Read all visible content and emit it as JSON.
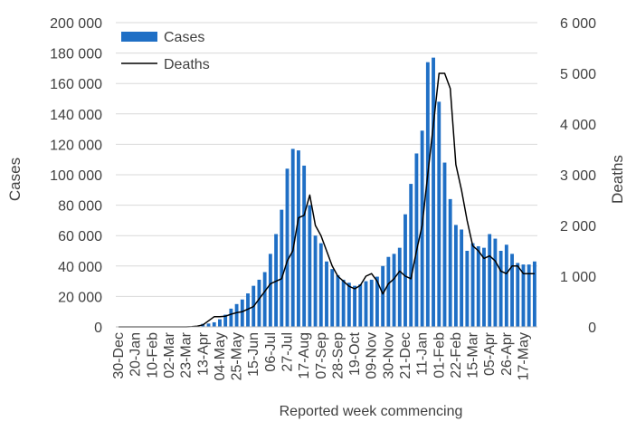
{
  "chart_data": {
    "type": "bar",
    "title": "",
    "xlabel": "Reported week commencing",
    "ylabel": "Cases",
    "y2label": "Deaths",
    "ylim": [
      0,
      200000
    ],
    "y2lim": [
      0,
      6000
    ],
    "yticks": [
      "0",
      "20 000",
      "40 000",
      "60 000",
      "80 000",
      "100 000",
      "120 000",
      "140 000",
      "160 000",
      "180 000",
      "200 000"
    ],
    "y2ticks": [
      "0",
      "1 000",
      "2 000",
      "3 000",
      "4 000",
      "5 000",
      "6 000"
    ],
    "xtick_labels": [
      "30-Dec",
      "20-Jan",
      "10-Feb",
      "02-Mar",
      "23-Mar",
      "13-Apr",
      "04-May",
      "25-May",
      "15-Jun",
      "06-Jul",
      "27-Jul",
      "17-Aug",
      "07-Sep",
      "28-Sep",
      "19-Oct",
      "09-Nov",
      "30-Nov",
      "21-Dec",
      "11-Jan",
      "01-Feb",
      "22-Feb",
      "15-Mar",
      "05-Apr",
      "26-Apr",
      "17-May"
    ],
    "legend_position": "top-left",
    "bar_color": "#1f6fc5",
    "line_color": "#000000",
    "series": [
      {
        "name": "Cases",
        "kind": "bar",
        "axis": "left",
        "values": [
          0,
          0,
          0,
          0,
          0,
          0,
          0,
          0,
          0,
          0,
          0,
          0,
          100,
          200,
          500,
          2000,
          2200,
          3000,
          5000,
          8000,
          12000,
          15000,
          18000,
          22000,
          27000,
          31000,
          36000,
          48000,
          61000,
          77000,
          104000,
          117000,
          116000,
          106000,
          80000,
          60000,
          55000,
          43000,
          38000,
          34000,
          31000,
          29000,
          27000,
          28000,
          30000,
          31000,
          33000,
          40000,
          46000,
          48000,
          52000,
          74000,
          94000,
          114000,
          129000,
          174000,
          177000,
          148000,
          108000,
          84000,
          67000,
          64000,
          50000,
          55000,
          53000,
          52000,
          61000,
          58000,
          50000,
          54000,
          48000,
          42000,
          41000,
          41000,
          43000
        ]
      },
      {
        "name": "Deaths",
        "kind": "line",
        "axis": "right",
        "values": [
          0,
          0,
          0,
          0,
          0,
          0,
          0,
          0,
          0,
          0,
          0,
          0,
          0,
          5,
          15,
          40,
          120,
          200,
          200,
          210,
          250,
          280,
          300,
          350,
          400,
          550,
          700,
          850,
          900,
          950,
          1300,
          1500,
          2150,
          2200,
          2600,
          2000,
          1800,
          1500,
          1200,
          1000,
          900,
          800,
          750,
          820,
          1000,
          1050,
          900,
          650,
          850,
          950,
          1100,
          1000,
          950,
          1500,
          2000,
          3000,
          4000,
          5000,
          5000,
          4700,
          3200,
          2700,
          2100,
          1600,
          1500,
          1350,
          1400,
          1300,
          1100,
          1050,
          1200,
          1200,
          1050,
          1050,
          1050
        ]
      }
    ]
  }
}
